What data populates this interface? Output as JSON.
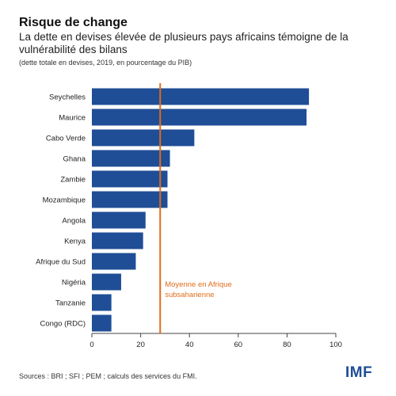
{
  "header": {
    "title": "Risque de change",
    "subtitle": "La dette en devises élevée de plusieurs pays africains témoigne de la vulnérabilité des bilans",
    "note": "(dette totale en devises, 2019, en pourcentage du PIB)"
  },
  "footer": {
    "source": "Sources : BRI ; SFI ; PEM ; calculs des services du FMI.",
    "logo": "IMF"
  },
  "colors": {
    "bar": "#1f4e96",
    "reference_line": "#e06c1a",
    "axis": "#444444"
  },
  "chart_data": {
    "type": "bar",
    "orientation": "horizontal",
    "categories": [
      "Seychelles",
      "Maurice",
      "Cabo Verde",
      "Ghana",
      "Zambie",
      "Mozambique",
      "Angola",
      "Kenya",
      "Afrique du Sud",
      "Nigéria",
      "Tanzanie",
      "Congo (RDC)"
    ],
    "values": [
      89,
      88,
      42,
      32,
      31,
      31,
      22,
      21,
      18,
      12,
      8,
      8
    ],
    "xlim": [
      0,
      100
    ],
    "xticks": [
      0,
      20,
      40,
      60,
      80,
      100
    ],
    "reference": {
      "value": 28,
      "label_lines": [
        "Moyenne en Afrique",
        "subsaharienne"
      ]
    },
    "grid": false,
    "legend": "none"
  }
}
